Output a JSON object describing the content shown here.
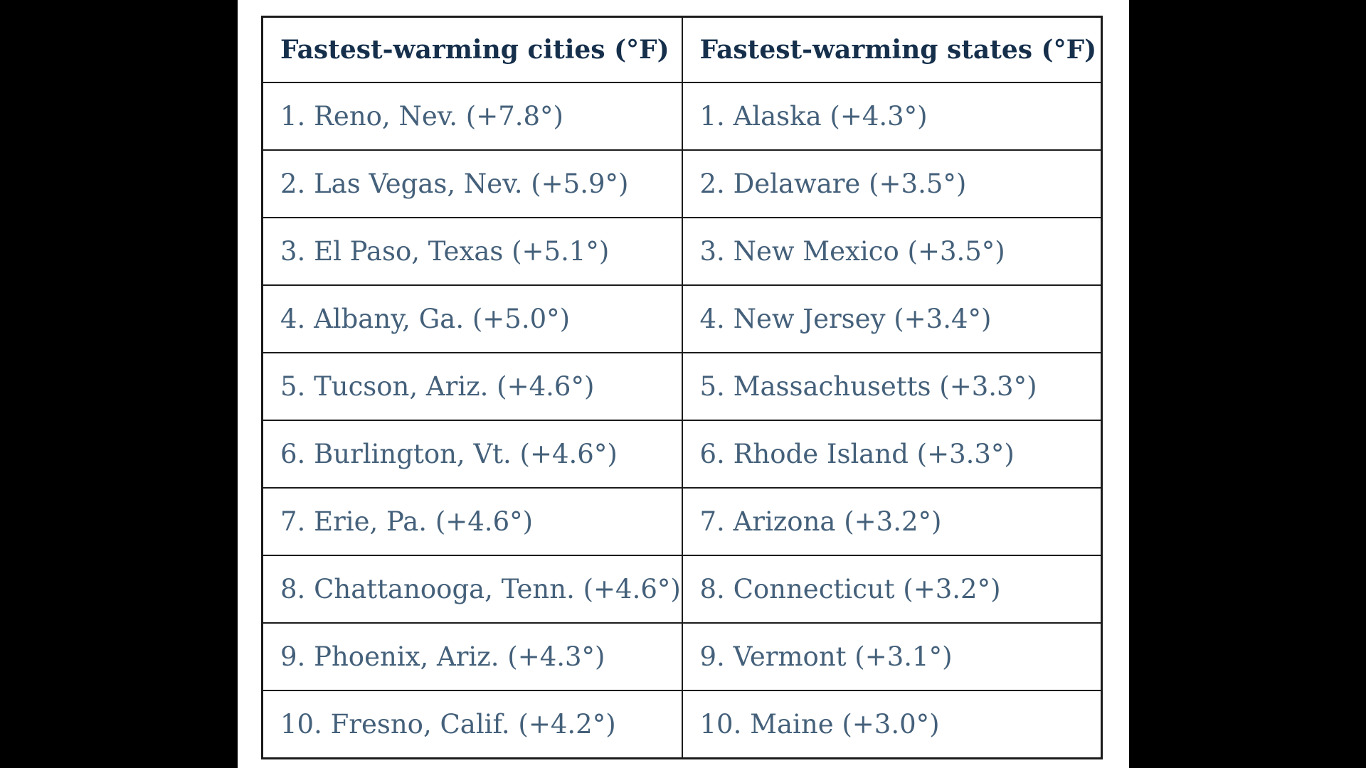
{
  "colors": {
    "page_background": "#000000",
    "panel_background": "#ffffff",
    "table_border": "#1b1b1b",
    "header_text": "#16304c",
    "body_text": "#44607a"
  },
  "table": {
    "headers": {
      "cities": "Fastest-warming cities (°F)",
      "states": "Fastest-warming states (°F)"
    },
    "rows": [
      {
        "city": "1. Reno, Nev. (+7.8°)",
        "state": "1. Alaska (+4.3°)"
      },
      {
        "city": "2. Las Vegas, Nev. (+5.9°)",
        "state": "2. Delaware (+3.5°)"
      },
      {
        "city": "3. El Paso, Texas (+5.1°)",
        "state": "3. New Mexico (+3.5°)"
      },
      {
        "city": "4. Albany, Ga. (+5.0°)",
        "state": "4. New Jersey (+3.4°)"
      },
      {
        "city": "5. Tucson, Ariz. (+4.6°)",
        "state": "5. Massachusetts (+3.3°)"
      },
      {
        "city": "6. Burlington, Vt. (+4.6°)",
        "state": "6. Rhode Island (+3.3°)"
      },
      {
        "city": "7. Erie, Pa. (+4.6°)",
        "state": "7. Arizona (+3.2°)"
      },
      {
        "city": "8. Chattanooga, Tenn. (+4.6°)",
        "state": "8. Connecticut (+3.2°)"
      },
      {
        "city": "9. Phoenix, Ariz. (+4.3°)",
        "state": "9. Vermont (+3.1°)"
      },
      {
        "city": "10. Fresno, Calif. (+4.2°)",
        "state": "10. Maine (+3.0°)"
      }
    ]
  },
  "chart_data": {
    "type": "table",
    "title": "",
    "columns": [
      "Fastest-warming cities (°F)",
      "Fastest-warming states (°F)"
    ],
    "cities": [
      {
        "rank": 1,
        "name": "Reno, Nev.",
        "warming_f": 7.8
      },
      {
        "rank": 2,
        "name": "Las Vegas, Nev.",
        "warming_f": 5.9
      },
      {
        "rank": 3,
        "name": "El Paso, Texas",
        "warming_f": 5.1
      },
      {
        "rank": 4,
        "name": "Albany, Ga.",
        "warming_f": 5.0
      },
      {
        "rank": 5,
        "name": "Tucson, Ariz.",
        "warming_f": 4.6
      },
      {
        "rank": 6,
        "name": "Burlington, Vt.",
        "warming_f": 4.6
      },
      {
        "rank": 7,
        "name": "Erie, Pa.",
        "warming_f": 4.6
      },
      {
        "rank": 8,
        "name": "Chattanooga, Tenn.",
        "warming_f": 4.6
      },
      {
        "rank": 9,
        "name": "Phoenix, Ariz.",
        "warming_f": 4.3
      },
      {
        "rank": 10,
        "name": "Fresno, Calif.",
        "warming_f": 4.2
      }
    ],
    "states": [
      {
        "rank": 1,
        "name": "Alaska",
        "warming_f": 4.3
      },
      {
        "rank": 2,
        "name": "Delaware",
        "warming_f": 3.5
      },
      {
        "rank": 3,
        "name": "New Mexico",
        "warming_f": 3.5
      },
      {
        "rank": 4,
        "name": "New Jersey",
        "warming_f": 3.4
      },
      {
        "rank": 5,
        "name": "Massachusetts",
        "warming_f": 3.3
      },
      {
        "rank": 6,
        "name": "Rhode Island",
        "warming_f": 3.3
      },
      {
        "rank": 7,
        "name": "Arizona",
        "warming_f": 3.2
      },
      {
        "rank": 8,
        "name": "Connecticut",
        "warming_f": 3.2
      },
      {
        "rank": 9,
        "name": "Vermont",
        "warming_f": 3.1
      },
      {
        "rank": 10,
        "name": "Maine",
        "warming_f": 3.0
      }
    ]
  }
}
